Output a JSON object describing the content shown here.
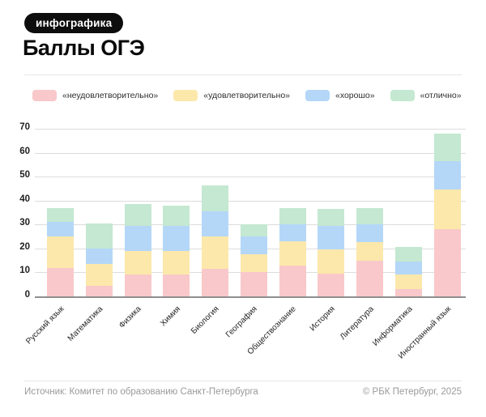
{
  "badge": "инфографика",
  "title": "Баллы ОГЭ",
  "legend": {
    "items": [
      {
        "label": "«неудовлетворительно»",
        "color": "#f9c8ca"
      },
      {
        "label": "«удовлетворительно»",
        "color": "#fce8ab"
      },
      {
        "label": "«хорошо»",
        "color": "#b4d7f8"
      },
      {
        "label": "«отлично»",
        "color": "#c4e8d1"
      }
    ]
  },
  "chart_data": {
    "type": "bar",
    "stacked": true,
    "title": "Баллы ОГЭ",
    "xlabel": "",
    "ylabel": "",
    "ylim": [
      0,
      70
    ],
    "yticks": [
      0,
      10,
      20,
      30,
      40,
      50,
      60,
      70
    ],
    "grid": true,
    "legend_position": "top",
    "categories": [
      "Русский язык",
      "Математика",
      "Физика",
      "Химия",
      "Биология",
      "География",
      "Обществознание",
      "История",
      "Литература",
      "Информатика",
      "Иностранный язык"
    ],
    "series": [
      {
        "name": "«неудовлетворительно»",
        "color": "#f9c8ca",
        "values": [
          12,
          4.5,
          9,
          9,
          11.5,
          10,
          13,
          9.5,
          15,
          3,
          28
        ]
      },
      {
        "name": "«удовлетворительно»",
        "color": "#fce8ab",
        "values": [
          13,
          9,
          10,
          10,
          13.5,
          7.5,
          10,
          10,
          7.5,
          6,
          16.5
        ]
      },
      {
        "name": "«хорошо»",
        "color": "#b4d7f8",
        "values": [
          6,
          6.5,
          10.5,
          10.5,
          10.5,
          7.5,
          7,
          10,
          7.5,
          5.5,
          12
        ]
      },
      {
        "name": "«отлично»",
        "color": "#c4e8d1",
        "values": [
          6,
          10.5,
          9,
          8.5,
          11,
          5,
          7,
          7,
          7,
          6,
          11.5
        ]
      }
    ],
    "stack_totals": [
      37,
      30.5,
      38.5,
      38,
      46.5,
      30,
      37,
      36.5,
      37,
      20.5,
      68
    ]
  },
  "footer": {
    "source": "Источник: Комитет по образованию Санкт-Петербурга",
    "copyright": "© РБК Петербург, 2025"
  }
}
